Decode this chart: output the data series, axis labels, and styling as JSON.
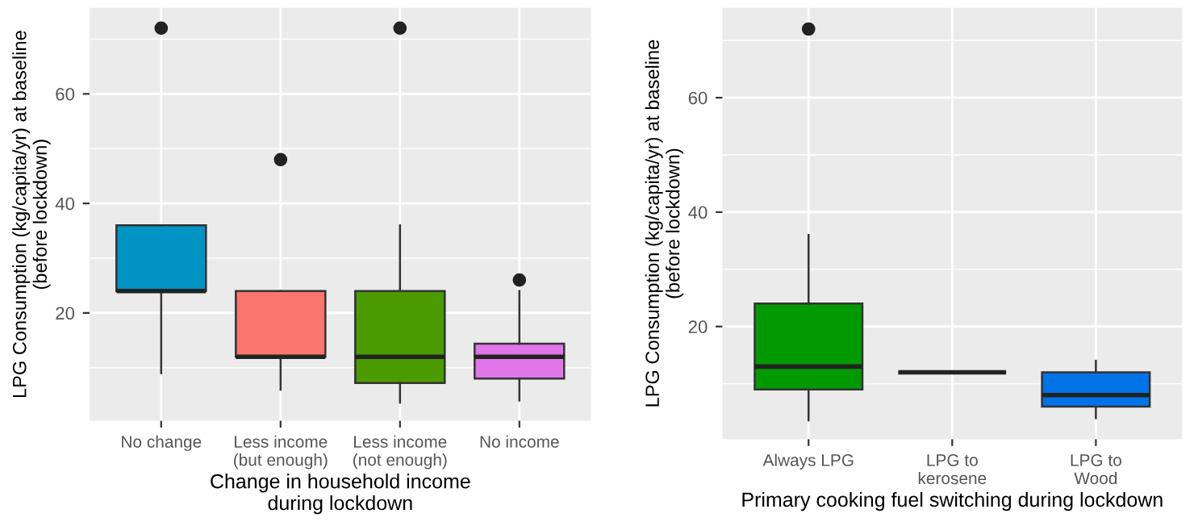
{
  "chart_data": [
    {
      "type": "box",
      "xlabel": "Change in household income\nduring lockdown",
      "ylabel": "LPG Consumption (kg/capita/yr) at baseline\n(before lockdown)",
      "categories": [
        "No change",
        "Less income\n(but enough)",
        "Less income\n(not enough)",
        "No income"
      ],
      "colors": [
        "#0093c4",
        "#f8766d",
        "#4a9a00",
        "#e076e8"
      ],
      "boxes": [
        {
          "low": 9,
          "q1": 24,
          "median": 24,
          "q3": 36,
          "high": 36,
          "outliers": [
            72
          ]
        },
        {
          "low": 6,
          "q1": 12,
          "median": 12,
          "q3": 24,
          "high": 24,
          "outliers": [
            48
          ]
        },
        {
          "low": 3.6,
          "q1": 7.2,
          "median": 12,
          "q3": 24,
          "high": 36,
          "outliers": [
            72
          ]
        },
        {
          "low": 4,
          "q1": 8,
          "median": 12,
          "q3": 14.4,
          "high": 24,
          "outliers": [
            26
          ]
        }
      ],
      "ylim": [
        0.3,
        75.7
      ],
      "yticks": [
        20,
        40,
        60
      ],
      "grid": true
    },
    {
      "type": "box",
      "xlabel": "Primary cooking fuel switching during lockdown",
      "ylabel": "LPG Consumption (kg/capita/yr) at baseline\n(before lockdown)",
      "categories": [
        "Always LPG",
        "LPG to\nkerosene",
        "LPG to\nWood"
      ],
      "colors": [
        "#009a00",
        "#333333",
        "#0073e6"
      ],
      "boxes": [
        {
          "low": 3.6,
          "q1": 9,
          "median": 13,
          "q3": 24,
          "high": 36,
          "outliers": [
            72
          ]
        },
        {
          "low": 12,
          "q1": 12,
          "median": 12,
          "q3": 12,
          "high": 12
        },
        {
          "low": 4,
          "q1": 6,
          "median": 8,
          "q3": 12,
          "high": 14
        }
      ],
      "ylim": [
        0.3,
        75.7
      ],
      "yticks": [
        20,
        40,
        60
      ],
      "grid": true
    }
  ]
}
